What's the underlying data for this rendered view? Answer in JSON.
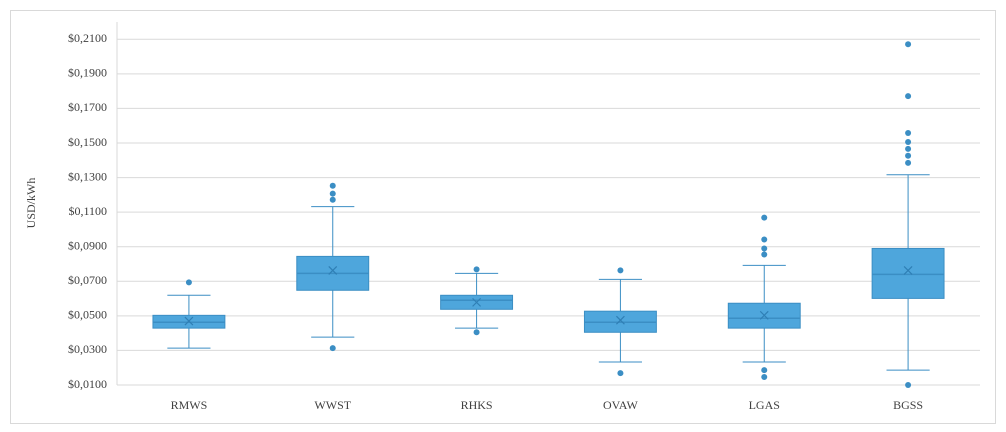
{
  "chart_data": {
    "type": "box",
    "y_label": "USD/kWh",
    "categories": [
      "RMWS",
      "WWST",
      "RHKS",
      "OVAW",
      "LGAS",
      "BGSS"
    ],
    "color": "#4ea6dc",
    "edge_color": "#3b8ec4",
    "ylim": [
      0.01,
      0.22
    ],
    "yticks": [
      {
        "value": 0.01,
        "label": "$0,0100"
      },
      {
        "value": 0.03,
        "label": "$0,0300"
      },
      {
        "value": 0.05,
        "label": "$0,0500"
      },
      {
        "value": 0.07,
        "label": "$0,0700"
      },
      {
        "value": 0.09,
        "label": "$0,0900"
      },
      {
        "value": 0.11,
        "label": "$0,1100"
      },
      {
        "value": 0.13,
        "label": "$0,1300"
      },
      {
        "value": 0.15,
        "label": "$0,1500"
      },
      {
        "value": 0.17,
        "label": "$0,1700"
      },
      {
        "value": 0.19,
        "label": "$0,1900"
      },
      {
        "value": 0.21,
        "label": "$0,2100"
      }
    ],
    "grid": true,
    "boxes": [
      {
        "min": 0.0313,
        "q1": 0.0429,
        "median": 0.0463,
        "q3": 0.0503,
        "max": 0.0619,
        "mean": 0.047,
        "outliers": [
          0.0694
        ]
      },
      {
        "min": 0.0377,
        "q1": 0.0648,
        "median": 0.0746,
        "q3": 0.0844,
        "max": 0.1132,
        "mean": 0.0763,
        "outliers": [
          0.0313,
          0.1172,
          0.1207,
          0.1253
        ]
      },
      {
        "min": 0.0429,
        "q1": 0.0538,
        "median": 0.059,
        "q3": 0.0619,
        "max": 0.0746,
        "mean": 0.0578,
        "outliers": [
          0.0405,
          0.0769
        ]
      },
      {
        "min": 0.0233,
        "q1": 0.0405,
        "median": 0.0463,
        "q3": 0.0527,
        "max": 0.0711,
        "mean": 0.0475,
        "outliers": [
          0.0169,
          0.0763
        ]
      },
      {
        "min": 0.0233,
        "q1": 0.0429,
        "median": 0.0486,
        "q3": 0.0573,
        "max": 0.0792,
        "mean": 0.0503,
        "outliers": [
          0.0146,
          0.0186,
          0.0855,
          0.089,
          0.0942,
          0.1068
        ]
      },
      {
        "min": 0.0186,
        "q1": 0.0601,
        "median": 0.074,
        "q3": 0.089,
        "max": 0.1316,
        "mean": 0.0763,
        "outliers": [
          0.01,
          0.1385,
          0.1426,
          0.1466,
          0.1506,
          0.1558,
          0.1771,
          0.2071
        ]
      }
    ]
  }
}
